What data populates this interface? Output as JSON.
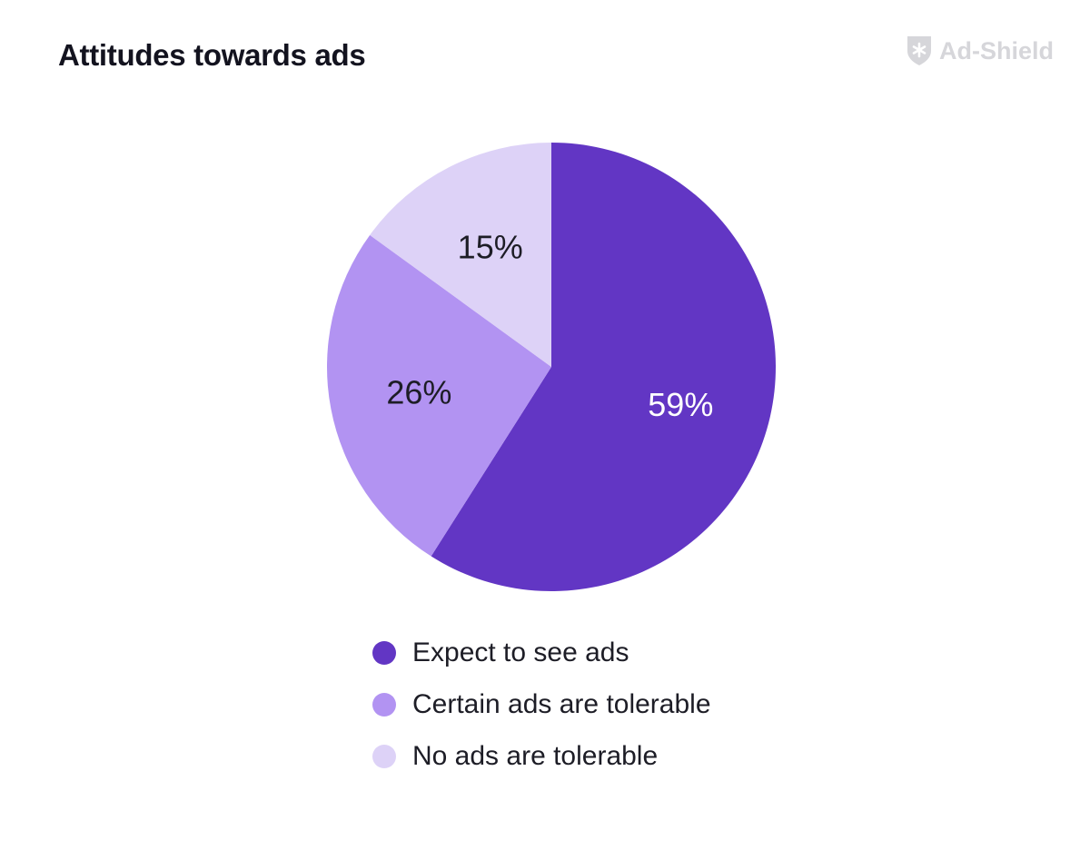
{
  "chart_data": {
    "type": "pie",
    "title": "Attitudes towards ads",
    "categories": [
      "Expect to see ads",
      "Certain ads are tolerable",
      "No ads are tolerable"
    ],
    "values": [
      59,
      26,
      15
    ],
    "labels": [
      "59%",
      "26%",
      "15%"
    ],
    "colors": [
      "#6236c4",
      "#b293f2",
      "#ddd2f7"
    ],
    "label_colors": [
      "#ffffff",
      "#1d1d26",
      "#1d1d26"
    ],
    "start_angle_deg": 0,
    "direction": "clockwise",
    "legend_position": "bottom"
  },
  "brand": {
    "name": "Ad-Shield",
    "icon": "shield-icon",
    "color": "#d6d6da"
  }
}
